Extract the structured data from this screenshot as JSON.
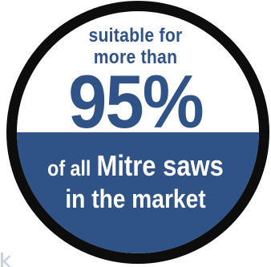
{
  "badge": {
    "top_text_line1": "suitable for",
    "top_text_line2": "more than",
    "percentage": "95%",
    "bottom_text_line1_part1": "of all",
    "bottom_text_line1_part2": "Mitre saws",
    "bottom_text_line2": "in the market",
    "colors": {
      "outer_ring": "#0d0d0d",
      "top_fill": "#ffffff",
      "bottom_fill": "#2f5287",
      "accent_text": "#2f5287",
      "inverse_text": "#ffffff"
    }
  }
}
